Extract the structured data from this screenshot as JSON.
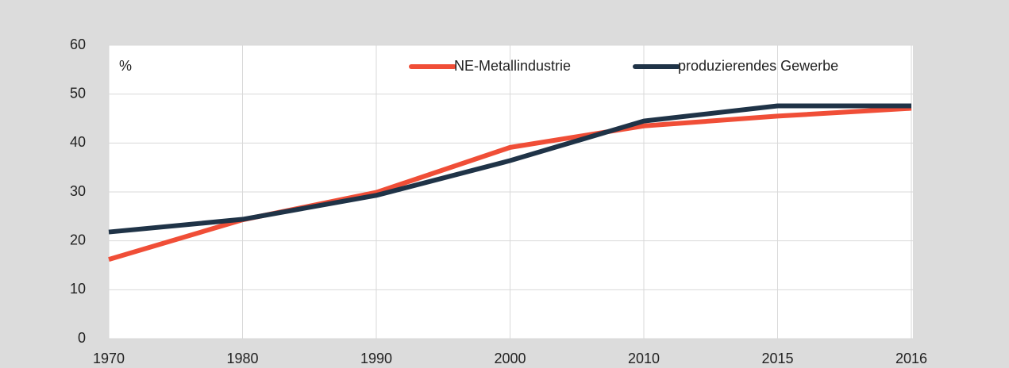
{
  "chart_data": {
    "type": "line",
    "y_label": "%",
    "categories": [
      "1970",
      "1980",
      "1990",
      "2000",
      "2010",
      "2015",
      "2016"
    ],
    "series": [
      {
        "name": "NE-Metallindustrie",
        "color": "#f04e37",
        "values": [
          16.2,
          24.3,
          29.9,
          39.1,
          43.5,
          45.5,
          47.1
        ]
      },
      {
        "name": "produzierendes Gewerbe",
        "color": "#1f3347",
        "values": [
          21.8,
          24.4,
          29.3,
          36.4,
          44.5,
          47.6,
          47.6
        ]
      }
    ],
    "ylim": [
      0,
      60
    ],
    "yticks": [
      0,
      10,
      20,
      30,
      40,
      50,
      60
    ],
    "grid": true,
    "legend": "top-right"
  }
}
